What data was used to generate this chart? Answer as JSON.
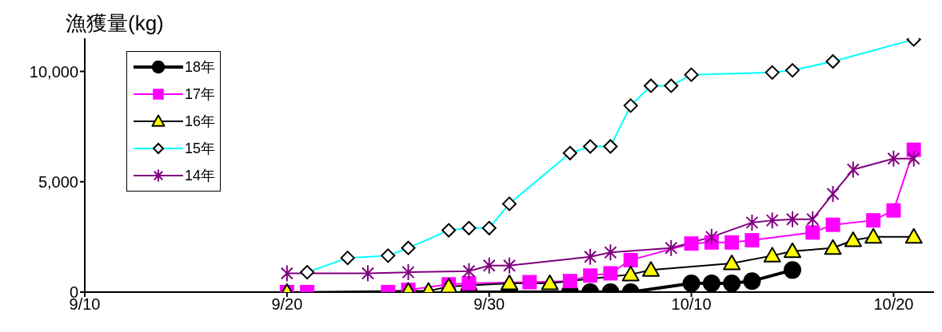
{
  "chart_data": {
    "type": "line",
    "ylabel": "漁獲量(kg)",
    "xlim": [
      "--09-10",
      "--10-22"
    ],
    "xticks": [
      {
        "value": "--09-10",
        "label": "9/10"
      },
      {
        "value": "--09-20",
        "label": "9/20"
      },
      {
        "value": "--09-30",
        "label": "9/30"
      },
      {
        "value": "--10-10",
        "label": "10/10"
      },
      {
        "value": "--10-20",
        "label": "10/20"
      }
    ],
    "ylim": [
      0,
      11500
    ],
    "yticks": [
      0,
      {
        "value": 5000,
        "label": "5,000"
      },
      {
        "value": 10000,
        "label": "10,000"
      }
    ],
    "grid": false,
    "legend": "top left",
    "line_style": "solid",
    "series": [
      {
        "name": "18年",
        "color": "#000000",
        "marker": "circle",
        "x": [
          "--09-29",
          "--10-01",
          "--10-04",
          "--10-05",
          "--10-06",
          "--10-07",
          "--10-10",
          "--10-11",
          "--10-12",
          "--10-13",
          "--10-15"
        ],
        "values": [
          0,
          0,
          0,
          0,
          0,
          0,
          400,
          400,
          400,
          500,
          1000
        ]
      },
      {
        "name": "17年",
        "color": "#ff00ff",
        "marker": "square",
        "x": [
          "--09-20",
          "--09-21",
          "--09-25",
          "--09-26",
          "--09-28",
          "--09-29",
          "--10-02",
          "--10-04",
          "--10-05",
          "--10-06",
          "--10-07",
          "--10-10",
          "--10-11",
          "--10-12",
          "--10-13",
          "--10-16",
          "--10-17",
          "--10-19",
          "--10-20",
          "--10-21"
        ],
        "values": [
          0,
          0,
          0,
          100,
          350,
          400,
          450,
          500,
          750,
          850,
          1450,
          2200,
          2250,
          2250,
          2350,
          2700,
          3050,
          3250,
          3700,
          6450
        ]
      },
      {
        "name": "16年",
        "color": "#000000",
        "marker": "triangle",
        "x": [
          "--09-20",
          "--09-26",
          "--09-27",
          "--09-28",
          "--10-01",
          "--10-03",
          "--10-07",
          "--10-08",
          "--10-12",
          "--10-14",
          "--10-15",
          "--10-17",
          "--10-18",
          "--10-19",
          "--10-21"
        ],
        "values": [
          0,
          50,
          50,
          250,
          400,
          400,
          800,
          1000,
          1300,
          1650,
          1850,
          2000,
          2350,
          2500,
          2500
        ]
      },
      {
        "name": "15年",
        "color": "#00ffff",
        "marker": "diamond",
        "x": [
          "--09-21",
          "--09-23",
          "--09-25",
          "--09-26",
          "--09-28",
          "--09-29",
          "--09-30",
          "--10-01",
          "--10-04",
          "--10-05",
          "--10-06",
          "--10-07",
          "--10-08",
          "--10-09",
          "--10-10",
          "--10-14",
          "--10-15",
          "--10-17",
          "--10-21"
        ],
        "values": [
          900,
          1550,
          1650,
          2000,
          2800,
          2900,
          2900,
          4000,
          6300,
          6600,
          6600,
          8450,
          9350,
          9350,
          9850,
          9950,
          10050,
          10450,
          11450
        ]
      },
      {
        "name": "14年",
        "color": "#800080",
        "marker": "cross",
        "x": [
          "--09-20",
          "--09-24",
          "--09-26",
          "--09-29",
          "--09-30",
          "--10-01",
          "--10-05",
          "--10-06",
          "--10-09",
          "--10-11",
          "--10-13",
          "--10-14",
          "--10-15",
          "--10-16",
          "--10-17",
          "--10-18",
          "--10-20",
          "--10-21"
        ],
        "values": [
          850,
          850,
          900,
          950,
          1200,
          1200,
          1600,
          1800,
          2000,
          2500,
          3150,
          3250,
          3300,
          3300,
          4450,
          5550,
          6050,
          6050
        ]
      }
    ]
  }
}
